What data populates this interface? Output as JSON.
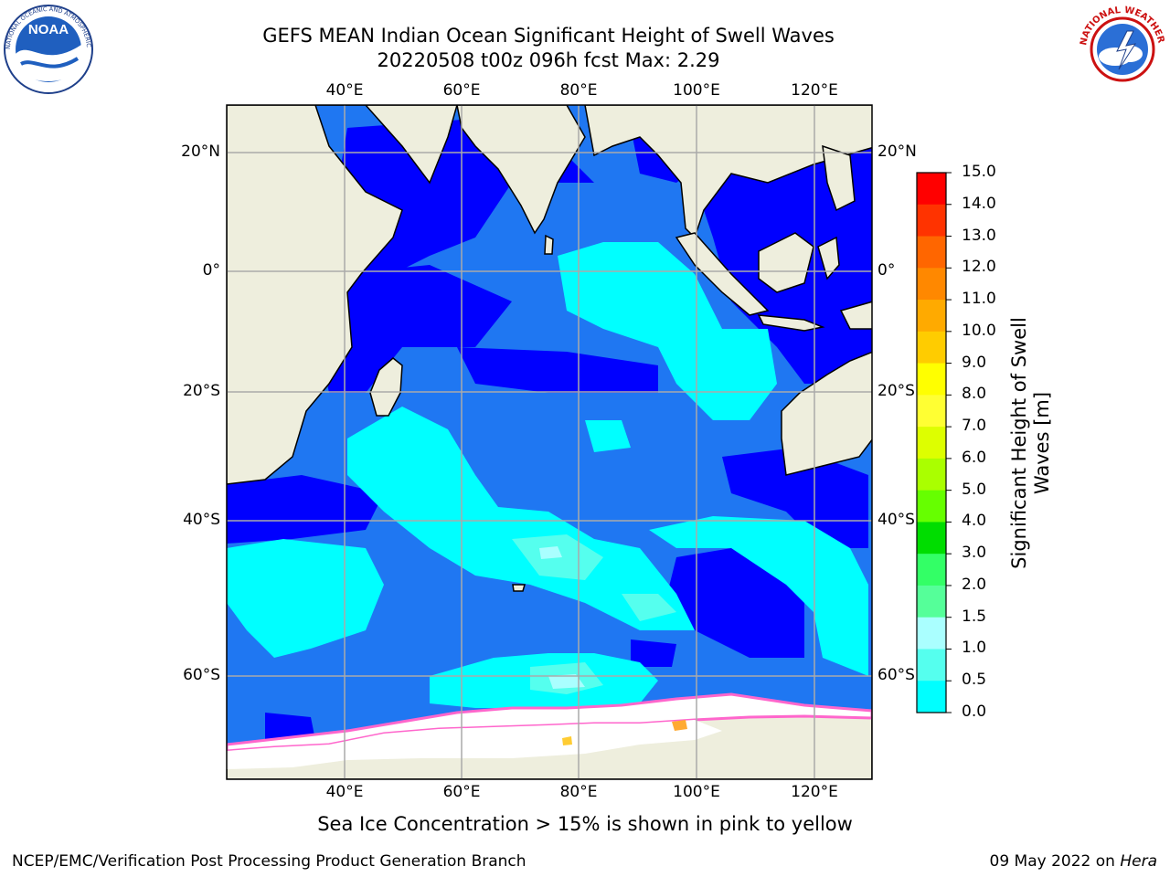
{
  "header": {
    "title_line1": "GEFS MEAN Indian Ocean Significant Height of Swell Waves",
    "title_line2": "20220508 t00z 096h fcst   Max: 2.29"
  },
  "logos": {
    "left": {
      "text": "NOAA",
      "ring_text": "NATIONAL OCEANIC AND ATMOSPHERIC ADMINISTRATION · U.S. DEPARTMENT OF COMMERCE"
    },
    "right": {
      "ring_text": "NATIONAL WEATHER SERVICE"
    }
  },
  "map": {
    "lon_ticks": [
      "40°E",
      "60°E",
      "80°E",
      "100°E",
      "120°E"
    ],
    "lat_ticks": [
      "20°N",
      "0°",
      "20°S",
      "40°S",
      "60°S"
    ],
    "colors": {
      "land": "#eeeedd",
      "ocean_0_0.5": "#0000ff",
      "ocean_0.5_1.0": "#1f77f2",
      "ocean_1.0_1.5": "#00ffff",
      "ocean_1.5_2.0": "#55ffee",
      "ocean_2.0_3.0": "#aaffff",
      "sea_ice": "#ffffff",
      "sea_ice_edge": "#ff66cc"
    }
  },
  "colorbar": {
    "ticks": [
      "15.0",
      "14.0",
      "13.0",
      "12.0",
      "11.0",
      "10.0",
      "9.0",
      "8.0",
      "7.0",
      "6.0",
      "5.0",
      "4.0",
      "3.0",
      "2.0",
      "1.5",
      "1.0",
      "0.5",
      "0.0"
    ],
    "colors": [
      "#ff0000",
      "#ff3300",
      "#ff6600",
      "#ff8800",
      "#ffaa00",
      "#ffcc00",
      "#ffff00",
      "#ffff33",
      "#ddff00",
      "#aaff00",
      "#66ff00",
      "#00dd00",
      "#33ff66",
      "#55ff99",
      "#aaffff",
      "#55ffee",
      "#00ffff",
      "#1f77f2",
      "#0000ff"
    ],
    "label_line1": "Significant Height of Swell",
    "label_line2": "Waves [m]"
  },
  "note": "Sea Ice Concentration > 15% is shown in pink to yellow",
  "footer": {
    "left": "NCEP/EMC/Verification Post Processing Product Generation Branch",
    "right_date": "09 May 2022 on",
    "right_host": "Hera"
  }
}
